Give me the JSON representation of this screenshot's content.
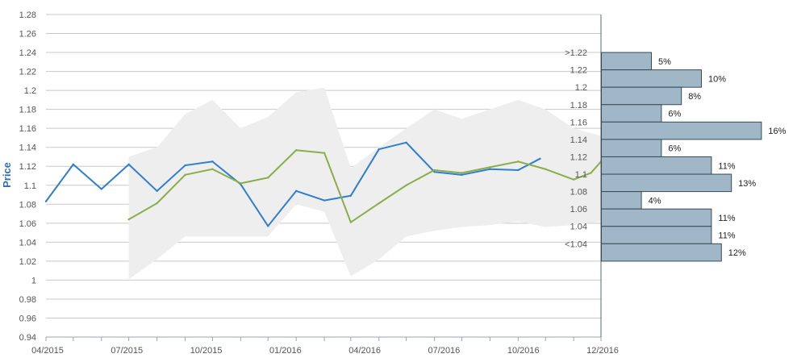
{
  "colors": {
    "actual": "#2f7fcf",
    "forecast": "#8aae4a",
    "band": "#eeeeee",
    "bar_fill": "#9fb7c6",
    "bar_stroke": "#3a4a55",
    "grid": "#c8c8c8",
    "axis_label": "#2f6fb8"
  },
  "chart_data": [
    {
      "type": "line",
      "ylabel": "Price",
      "ylim": [
        0.94,
        1.28
      ],
      "yticks": [
        0.94,
        0.96,
        0.98,
        1,
        1.02,
        1.04,
        1.06,
        1.08,
        1.1,
        1.12,
        1.14,
        1.16,
        1.18,
        1.2,
        1.22,
        1.24,
        1.26,
        1.28
      ],
      "ytick_labels": [
        "0.94",
        "0.96",
        "0.98",
        "1",
        "1.02",
        "1.04",
        "1.06",
        "1.08",
        "1.1",
        "1.12",
        "1.14",
        "1.16",
        "1.18",
        "1.2",
        "1.22",
        "1.24",
        "1.26",
        "1.28"
      ],
      "xlim": [
        "2015-04",
        "2016-12"
      ],
      "xtick_labels": [
        "04/2015",
        "07/2015",
        "10/2015",
        "01/2016",
        "04/2016",
        "07/2016",
        "10/2016",
        "12/2016"
      ],
      "series": [
        {
          "key": "actual",
          "x": [
            "2015-04",
            "2015-05",
            "2015-06",
            "2015-07",
            "2015-08",
            "2015-09",
            "2015-10",
            "2015-11",
            "2015-12",
            "2016-01",
            "2016-02",
            "2016-03",
            "2016-04",
            "2016-05",
            "2016-06",
            "2016-07",
            "2016-08",
            "2016-09",
            "2016-09-25"
          ],
          "y": [
            1.083,
            1.122,
            1.096,
            1.122,
            1.094,
            1.121,
            1.125,
            1.101,
            1.057,
            1.094,
            1.084,
            1.089,
            1.138,
            1.145,
            1.114,
            1.111,
            1.117,
            1.116,
            1.128
          ]
        },
        {
          "key": "forecast",
          "x": [
            "2015-07",
            "2015-08",
            "2015-09",
            "2015-10",
            "2015-11",
            "2015-12",
            "2016-01",
            "2016-02",
            "2016-03",
            "2016-04",
            "2016-05",
            "2016-06",
            "2016-07",
            "2016-08",
            "2016-09",
            "2016-10",
            "2016-11",
            "2016-11-20",
            "2016-12"
          ],
          "y": [
            1.064,
            1.081,
            1.111,
            1.117,
            1.102,
            1.108,
            1.137,
            1.134,
            1.061,
            1.081,
            1.1,
            1.116,
            1.113,
            1.119,
            1.125,
            1.117,
            1.106,
            1.113,
            1.125
          ]
        }
      ],
      "band": {
        "x": [
          "2015-07",
          "2015-08",
          "2015-09",
          "2015-10",
          "2015-11",
          "2015-12",
          "2016-01",
          "2016-02",
          "2016-03",
          "2016-04",
          "2016-05",
          "2016-06",
          "2016-07",
          "2016-08",
          "2016-09",
          "2016-10",
          "2016-11",
          "2016-12"
        ],
        "upper": [
          1.13,
          1.14,
          1.175,
          1.19,
          1.16,
          1.172,
          1.198,
          1.203,
          1.118,
          1.14,
          1.16,
          1.18,
          1.17,
          1.18,
          1.19,
          1.18,
          1.16,
          1.152
        ],
        "lower": [
          1.001,
          1.022,
          1.046,
          1.046,
          1.046,
          1.046,
          1.08,
          1.072,
          1.004,
          1.022,
          1.046,
          1.052,
          1.056,
          1.058,
          1.062,
          1.056,
          1.058,
          1.062
        ]
      }
    },
    {
      "type": "bar",
      "orientation": "horizontal",
      "categories": [
        ">1.22",
        "1.22",
        "1.2",
        "1.18",
        "1.16",
        "1.14",
        "1.12",
        "1.1",
        "1.08",
        "1.06",
        "1.04",
        "<1.04"
      ],
      "values": [
        5,
        10,
        8,
        6,
        16,
        6,
        11,
        13,
        4,
        11,
        11,
        12
      ],
      "value_labels": [
        "5%",
        "10%",
        "8%",
        "6%",
        "16%",
        "6%",
        "11%",
        "13%",
        "4%",
        "11%",
        "11%",
        "12%"
      ]
    }
  ]
}
